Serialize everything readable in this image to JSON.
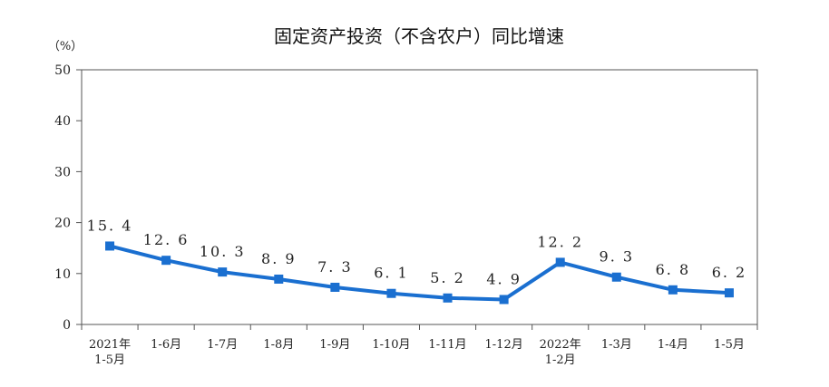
{
  "chart_data": {
    "type": "line",
    "title": "固定资产投资（不含农户）同比增速",
    "unit_label": "（%）",
    "ylim": [
      0,
      50
    ],
    "yticks": [
      "0",
      "10",
      "20",
      "30",
      "40",
      "50"
    ],
    "categories": [
      [
        "2021年",
        "1-5月"
      ],
      [
        "1-6月"
      ],
      [
        "1-7月"
      ],
      [
        "1-8月"
      ],
      [
        "1-9月"
      ],
      [
        "1-10月"
      ],
      [
        "1-11月"
      ],
      [
        "1-12月"
      ],
      [
        "2022年",
        "1-2月"
      ],
      [
        "1-3月"
      ],
      [
        "1-4月"
      ],
      [
        "1-5月"
      ]
    ],
    "series": [
      {
        "values": [
          15.4,
          12.6,
          10.3,
          8.9,
          7.3,
          6.1,
          5.2,
          4.9,
          12.2,
          9.3,
          6.8,
          6.2
        ],
        "labels": [
          "15. 4",
          "12. 6",
          "10. 3",
          "8. 9",
          "7. 3",
          "6. 1",
          "5. 2",
          "4. 9",
          "12. 2",
          "9. 3",
          "6. 8",
          "6. 2"
        ],
        "color": "#1a6fd0"
      }
    ],
    "grid": false,
    "legend": "none"
  }
}
